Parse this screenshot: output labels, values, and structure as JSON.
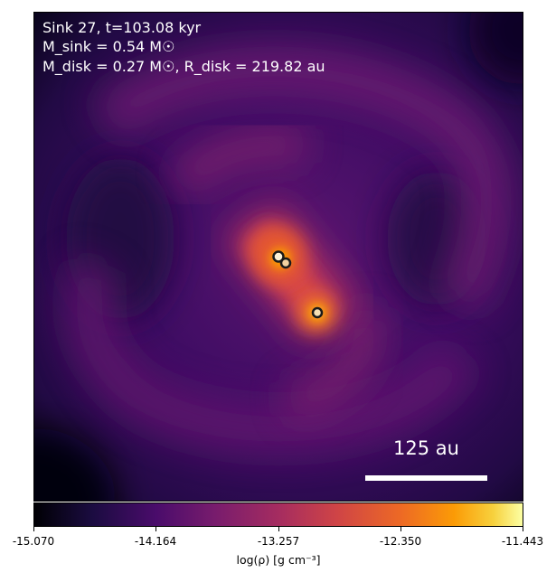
{
  "annotations": {
    "line1": "Sink 27, t=103.08 kyr",
    "line2": "M_sink = 0.54 M☉",
    "line3": "M_disk = 0.27 M☉, R_disk = 219.82 au"
  },
  "scale_bar": {
    "label": "125 au"
  },
  "colorbar": {
    "ticks": [
      "-15.070",
      "-14.164",
      "-13.257",
      "-12.350",
      "-11.443"
    ],
    "label": "log(ρ) [g cm⁻³]",
    "colormap": "inferno"
  },
  "sinks": [
    {
      "id": "sink-a"
    },
    {
      "id": "sink-b"
    },
    {
      "id": "sink-c"
    }
  ]
}
